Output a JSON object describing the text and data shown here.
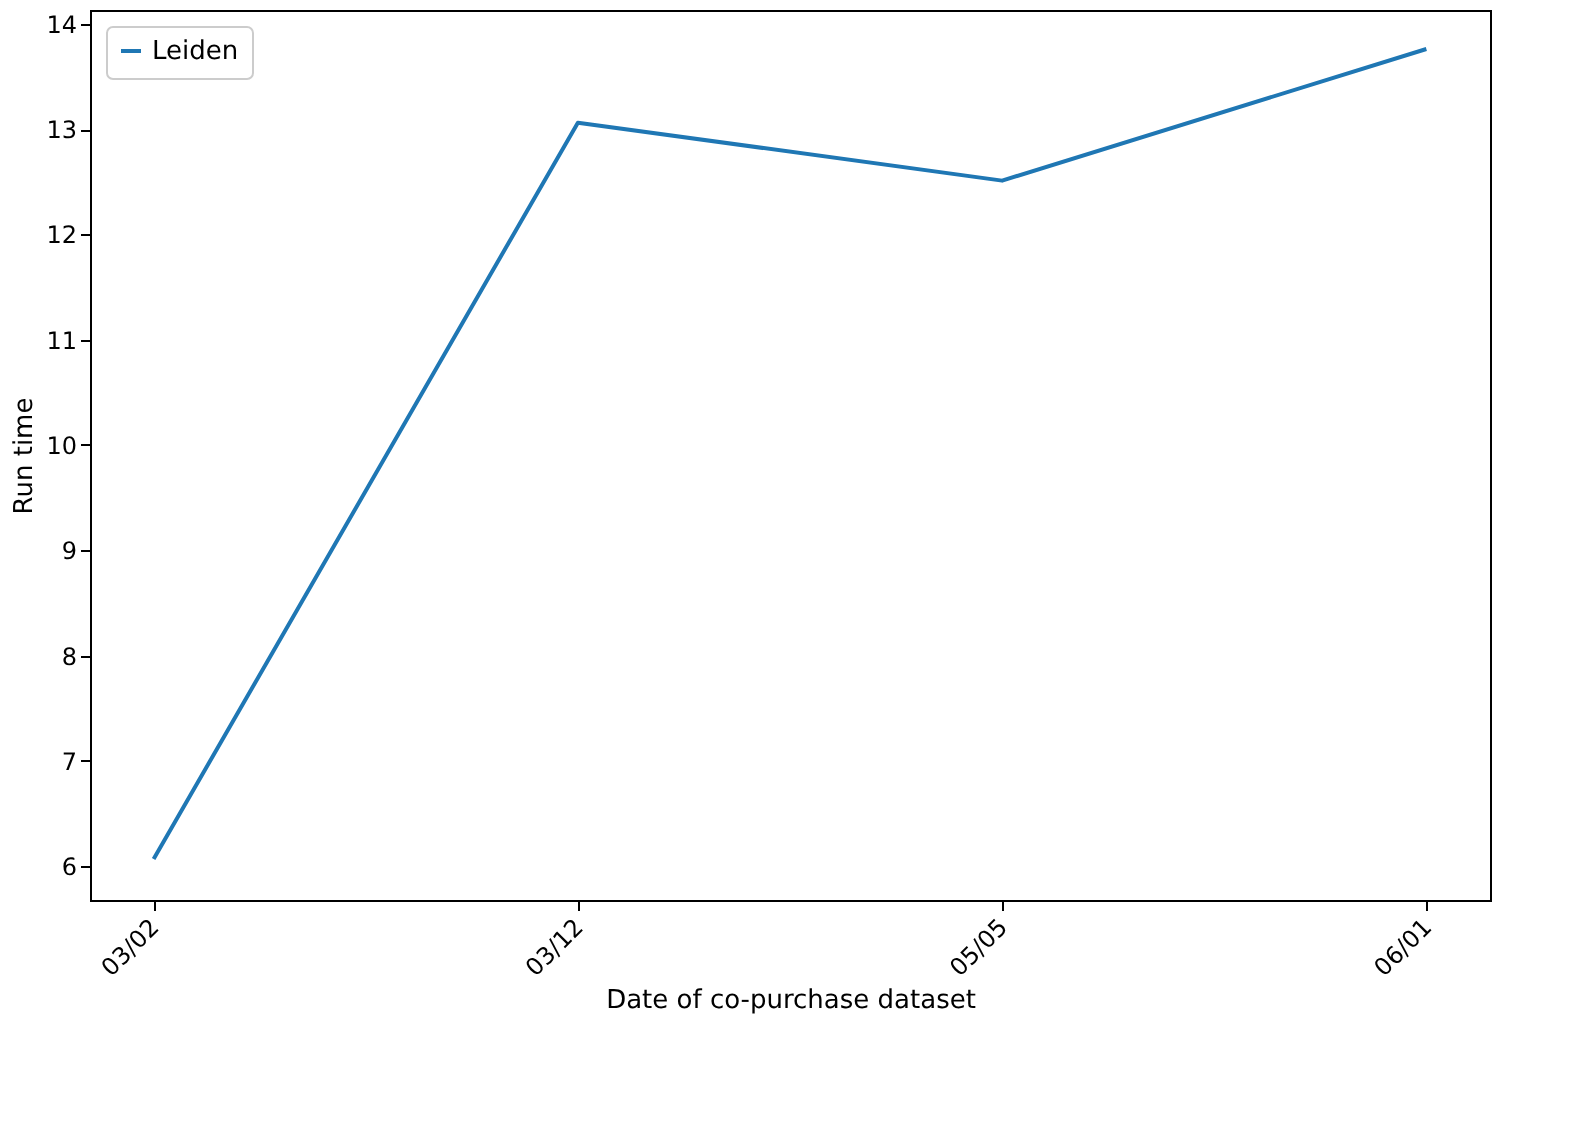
{
  "chart_data": {
    "type": "line",
    "xlabel": "Date of co-purchase dataset",
    "ylabel": "Run time",
    "categories": [
      "03/02",
      "03/12",
      "05/05",
      "06/01"
    ],
    "series": [
      {
        "name": "Leiden",
        "color": "#1f77b4",
        "values": [
          6.07,
          13.06,
          12.51,
          13.76
        ]
      }
    ],
    "ylim": [
      5.68,
      14.13
    ],
    "yticks": [
      6,
      7,
      8,
      9,
      10,
      11,
      12,
      13,
      14
    ],
    "grid": false,
    "legend": "top left",
    "marker": "none",
    "line_style": "solid"
  }
}
